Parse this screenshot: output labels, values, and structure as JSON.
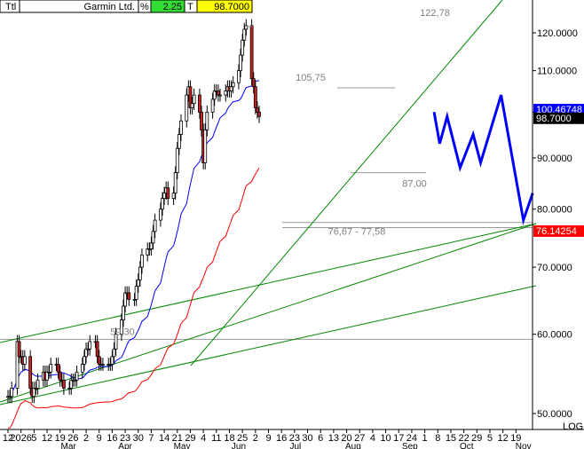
{
  "header": {
    "mode": "Ttl",
    "name": "Garmin Ltd.",
    "pct_symbol": "%",
    "pct_value": "2.25",
    "t_symbol": "T",
    "last_price": "98.7000",
    "colors": {
      "pct_bg": "#33dd33",
      "price_bg": "#ffff00"
    }
  },
  "chart_data": {
    "type": "line",
    "title": "",
    "y_scale": "log",
    "y_scale_label": "LOG",
    "ylim": [
      48,
      130
    ],
    "y_ticks": [
      "120.0000",
      "110.0000",
      "100.0000",
      "90.0000",
      "80.0000",
      "70.0000",
      "60.0000",
      "50.0000"
    ],
    "x_tick_labels": [
      "12",
      "2026",
      "5",
      "12",
      "19",
      "26",
      "2",
      "9",
      "16",
      "23",
      "30",
      "7",
      "14",
      "21",
      "29",
      "4",
      "11",
      "18",
      "25",
      "2",
      "9",
      "16",
      "23",
      "30",
      "6",
      "13",
      "20",
      "27",
      "4",
      "10",
      "17",
      "24",
      "1",
      "8",
      "15",
      "22",
      "29",
      "5",
      "12",
      "19"
    ],
    "month_labels": [
      "Mar",
      "Apr",
      "May",
      "Jun",
      "Jul",
      "Aug",
      "Sep",
      "Oct",
      "Nov"
    ],
    "x_range": [
      "2025-02-12",
      "2025-11-19"
    ],
    "price_daily_closes": [
      52,
      52,
      53,
      59,
      57,
      57,
      56,
      57,
      53,
      52,
      53,
      53,
      54,
      55,
      54,
      55,
      55,
      56,
      56,
      55,
      54,
      54,
      53,
      53,
      54,
      54,
      54,
      55,
      56,
      57,
      58,
      58,
      59,
      59,
      57,
      56,
      56,
      56,
      56,
      56,
      57,
      58,
      60,
      62,
      64,
      66,
      66,
      65,
      65,
      67,
      68,
      70,
      72,
      73,
      73,
      74,
      76,
      78,
      80,
      82,
      83,
      84,
      82,
      83,
      87,
      92,
      95,
      98,
      104,
      106,
      101,
      102,
      104,
      100,
      96,
      89,
      96,
      100,
      103,
      105,
      105,
      104,
      104,
      105,
      106,
      105,
      106,
      107,
      110,
      114,
      118,
      121,
      122,
      108,
      106,
      101,
      100,
      99
    ],
    "annotations": [
      "122,78",
      "105,75",
      "87,00",
      "59,30",
      "76,67 - 77,58"
    ],
    "projection_points": [
      {
        "x": "2025-09-29",
        "y": 100
      },
      {
        "x": "2025-10-02",
        "y": 93
      },
      {
        "x": "2025-10-06",
        "y": 99
      },
      {
        "x": "2025-10-13",
        "y": 88
      },
      {
        "x": "2025-10-20",
        "y": 95
      },
      {
        "x": "2025-10-24",
        "y": 89
      },
      {
        "x": "2025-11-04",
        "y": 104
      },
      {
        "x": "2025-11-16",
        "y": 78
      },
      {
        "x": "2025-11-21",
        "y": 83
      }
    ],
    "series": [
      {
        "name": "Price",
        "color": "#000000"
      },
      {
        "name": "",
        "color": "#0000ff",
        "last_value": "100.46748"
      },
      {
        "name": "",
        "color": "#ff0000",
        "last_value": "76.14254"
      },
      {
        "name": "",
        "color": "#0000ff"
      }
    ],
    "levels": [
      122.78,
      105.75,
      87.0,
      59.3,
      76.67,
      77.58
    ],
    "trendlines": [
      "green",
      "green",
      "green",
      "green"
    ],
    "grid": false,
    "legend": "none"
  }
}
